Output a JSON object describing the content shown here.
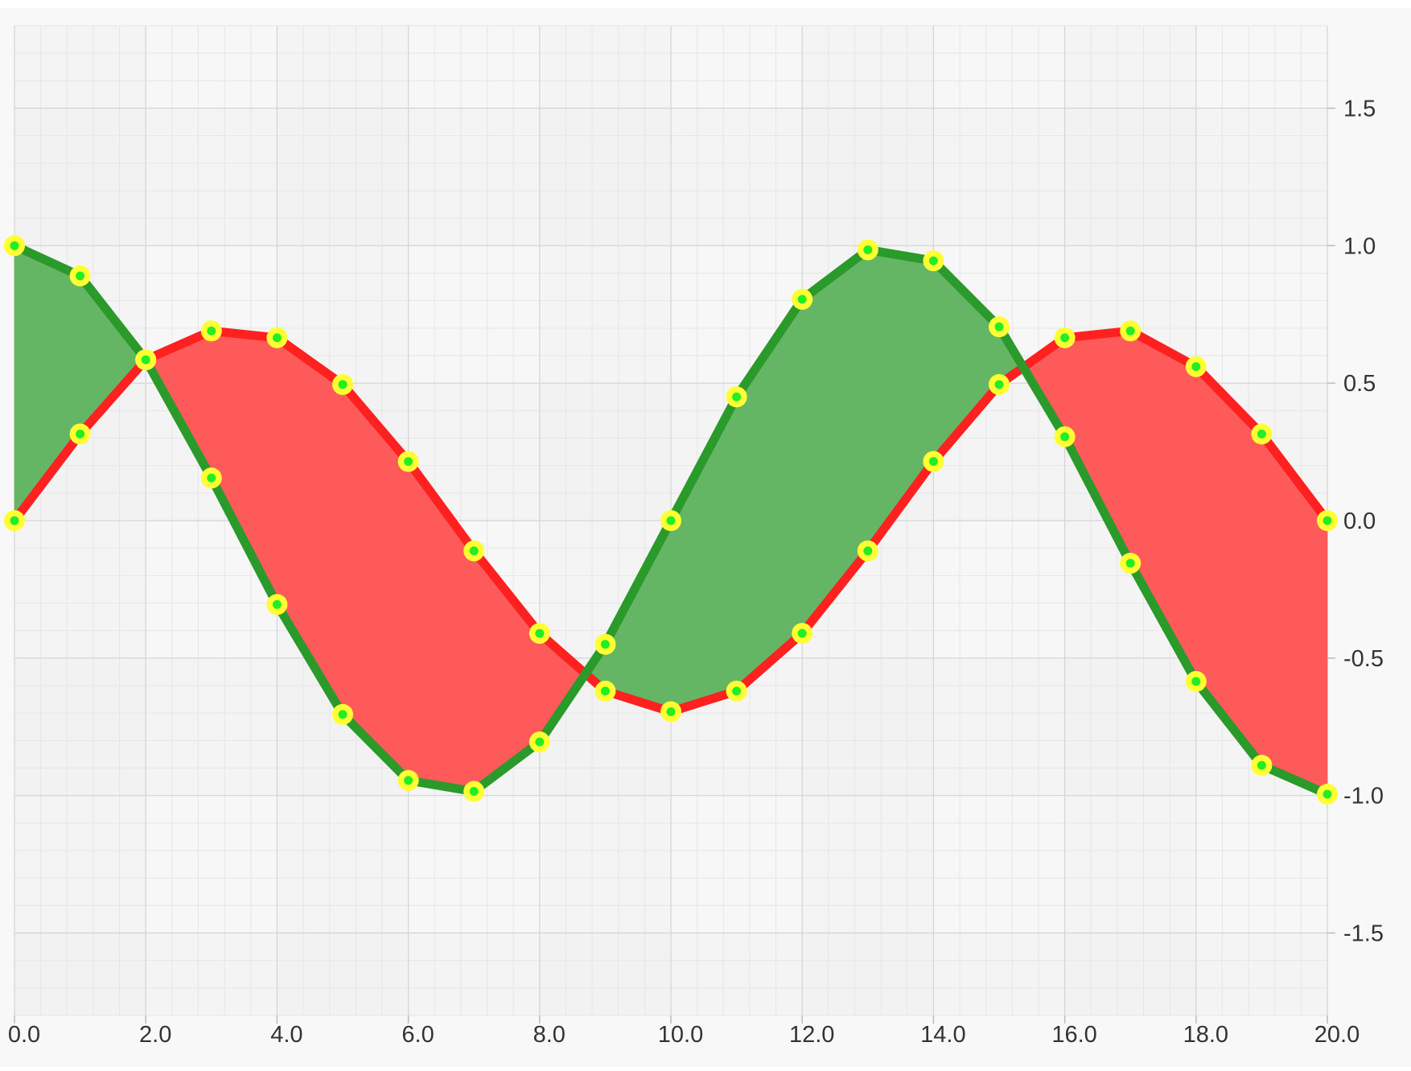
{
  "chart_data": {
    "type": "line",
    "fill_between": true,
    "x": [
      0,
      1,
      2,
      3,
      4,
      5,
      6,
      7,
      8,
      9,
      10,
      11,
      12,
      13,
      14,
      15,
      16,
      17,
      18,
      19,
      20
    ],
    "series": [
      {
        "color": "#ff2020",
        "values": [
          0.0,
          0.315,
          0.585,
          0.69,
          0.665,
          0.495,
          0.215,
          -0.11,
          -0.41,
          -0.62,
          -0.695,
          -0.62,
          -0.41,
          -0.11,
          0.215,
          0.495,
          0.665,
          0.69,
          0.56,
          0.315,
          0.0
        ]
      },
      {
        "color": "#2a9a2a",
        "values": [
          1.0,
          0.89,
          0.585,
          0.155,
          -0.305,
          -0.705,
          -0.945,
          -0.985,
          -0.805,
          -0.45,
          0.0,
          0.45,
          0.805,
          0.985,
          0.945,
          0.705,
          0.305,
          -0.155,
          -0.585,
          -0.89,
          -0.995
        ]
      }
    ],
    "fill_colors": {
      "red_above": "#ff5a5a",
      "green_above": "#64b664"
    },
    "marker": {
      "outer_color": "#ffff33",
      "inner_color": "#22ee22"
    },
    "x_range": [
      0,
      20
    ],
    "y_range": [
      -1.8,
      1.8
    ],
    "x_ticks": [
      0,
      2,
      4,
      6,
      8,
      10,
      12,
      14,
      16,
      18,
      20
    ],
    "x_tick_labels": [
      "0.0",
      "2.0",
      "4.0",
      "6.0",
      "8.0",
      "10.0",
      "12.0",
      "14.0",
      "16.0",
      "18.0",
      "20.0"
    ],
    "y_ticks": [
      1.5,
      1.0,
      0.5,
      0.0,
      -0.5,
      -1.0,
      -1.5
    ],
    "y_tick_labels": [
      "1.5",
      "1.0",
      "0.5",
      "0.0",
      "-0.5",
      "-1.0",
      "-1.5"
    ],
    "x_axis_position": "bottom",
    "y_axis_position": "right",
    "grid": true,
    "minor_grid": true,
    "legend": "none",
    "title": "",
    "xlabel": "",
    "ylabel": ""
  }
}
